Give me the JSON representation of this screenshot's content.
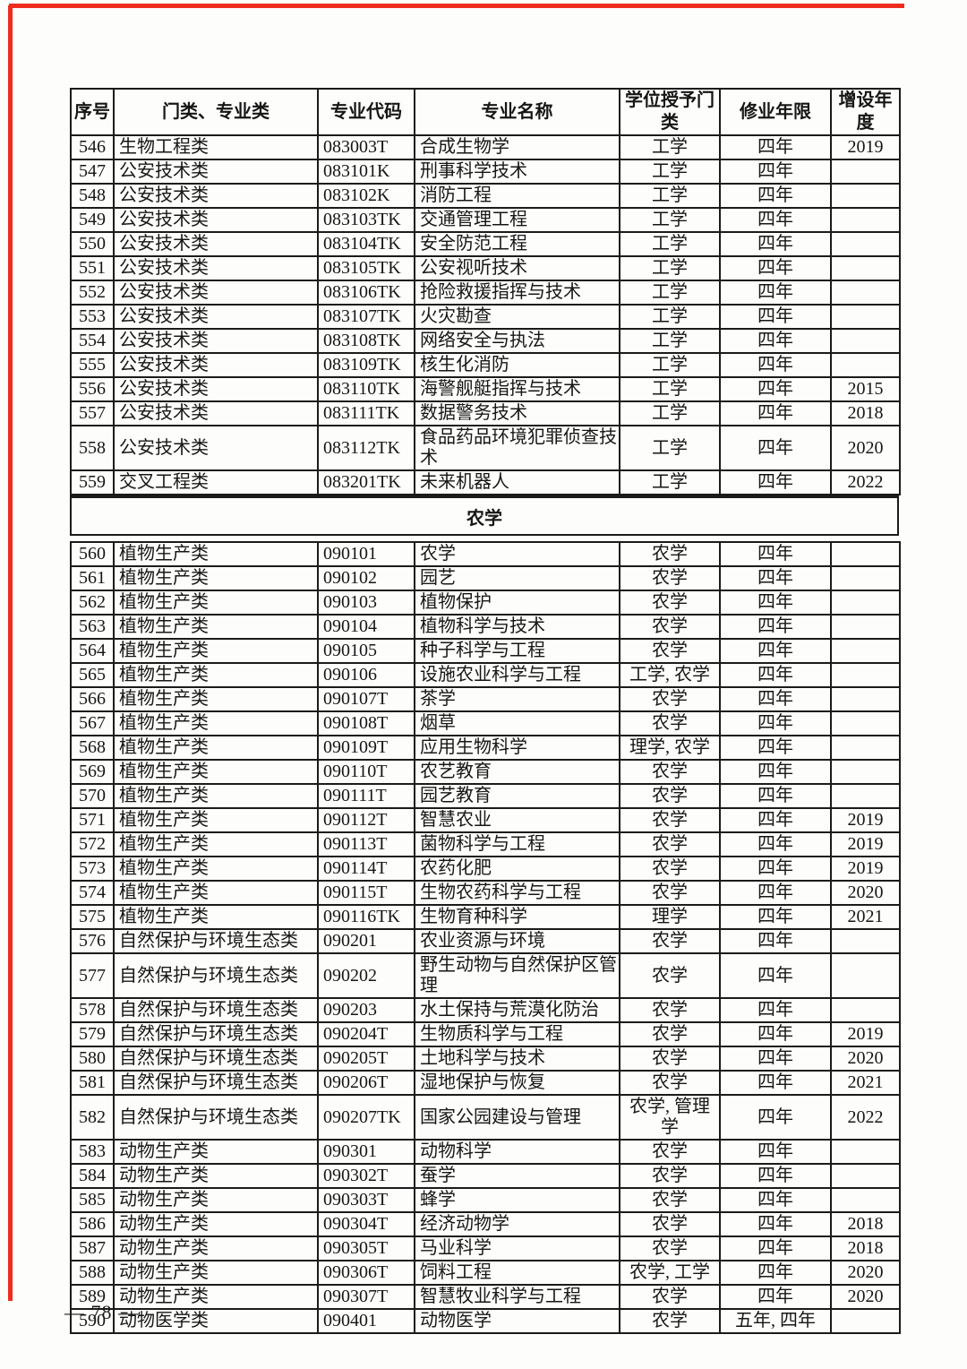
{
  "colors": {
    "annotation_red": "#ee2d1f"
  },
  "page": {
    "number_label": "— 78 —"
  },
  "table": {
    "headers": [
      "序号",
      "门类、专业类",
      "专业代码",
      "专业名称",
      "学位授予门类",
      "修业年限",
      "增设年度"
    ],
    "sections": [
      {
        "title": "",
        "rows": [
          {
            "no": "546",
            "category": "生物工程类",
            "code": "083003T",
            "name": "合成生物学",
            "degree": "工学",
            "years": "四年",
            "added": "2019"
          },
          {
            "no": "547",
            "category": "公安技术类",
            "code": "083101K",
            "name": "刑事科学技术",
            "degree": "工学",
            "years": "四年",
            "added": ""
          },
          {
            "no": "548",
            "category": "公安技术类",
            "code": "083102K",
            "name": "消防工程",
            "degree": "工学",
            "years": "四年",
            "added": ""
          },
          {
            "no": "549",
            "category": "公安技术类",
            "code": "083103TK",
            "name": "交通管理工程",
            "degree": "工学",
            "years": "四年",
            "added": ""
          },
          {
            "no": "550",
            "category": "公安技术类",
            "code": "083104TK",
            "name": "安全防范工程",
            "degree": "工学",
            "years": "四年",
            "added": ""
          },
          {
            "no": "551",
            "category": "公安技术类",
            "code": "083105TK",
            "name": "公安视听技术",
            "degree": "工学",
            "years": "四年",
            "added": ""
          },
          {
            "no": "552",
            "category": "公安技术类",
            "code": "083106TK",
            "name": "抢险救援指挥与技术",
            "degree": "工学",
            "years": "四年",
            "added": ""
          },
          {
            "no": "553",
            "category": "公安技术类",
            "code": "083107TK",
            "name": "火灾勘查",
            "degree": "工学",
            "years": "四年",
            "added": ""
          },
          {
            "no": "554",
            "category": "公安技术类",
            "code": "083108TK",
            "name": "网络安全与执法",
            "degree": "工学",
            "years": "四年",
            "added": ""
          },
          {
            "no": "555",
            "category": "公安技术类",
            "code": "083109TK",
            "name": "核生化消防",
            "degree": "工学",
            "years": "四年",
            "added": ""
          },
          {
            "no": "556",
            "category": "公安技术类",
            "code": "083110TK",
            "name": "海警舰艇指挥与技术",
            "degree": "工学",
            "years": "四年",
            "added": "2015"
          },
          {
            "no": "557",
            "category": "公安技术类",
            "code": "083111TK",
            "name": "数据警务技术",
            "degree": "工学",
            "years": "四年",
            "added": "2018"
          },
          {
            "no": "558",
            "category": "公安技术类",
            "code": "083112TK",
            "name": "食品药品环境犯罪侦查技术",
            "degree": "工学",
            "years": "四年",
            "added": "2020"
          },
          {
            "no": "559",
            "category": "交叉工程类",
            "code": "083201TK",
            "name": "未来机器人",
            "degree": "工学",
            "years": "四年",
            "added": "2022"
          }
        ]
      },
      {
        "title": "农学",
        "rows": [
          {
            "no": "560",
            "category": "植物生产类",
            "code": "090101",
            "name": "农学",
            "degree": "农学",
            "years": "四年",
            "added": ""
          },
          {
            "no": "561",
            "category": "植物生产类",
            "code": "090102",
            "name": "园艺",
            "degree": "农学",
            "years": "四年",
            "added": ""
          },
          {
            "no": "562",
            "category": "植物生产类",
            "code": "090103",
            "name": "植物保护",
            "degree": "农学",
            "years": "四年",
            "added": ""
          },
          {
            "no": "563",
            "category": "植物生产类",
            "code": "090104",
            "name": "植物科学与技术",
            "degree": "农学",
            "years": "四年",
            "added": ""
          },
          {
            "no": "564",
            "category": "植物生产类",
            "code": "090105",
            "name": "种子科学与工程",
            "degree": "农学",
            "years": "四年",
            "added": ""
          },
          {
            "no": "565",
            "category": "植物生产类",
            "code": "090106",
            "name": "设施农业科学与工程",
            "degree": "工学, 农学",
            "years": "四年",
            "added": ""
          },
          {
            "no": "566",
            "category": "植物生产类",
            "code": "090107T",
            "name": "茶学",
            "degree": "农学",
            "years": "四年",
            "added": ""
          },
          {
            "no": "567",
            "category": "植物生产类",
            "code": "090108T",
            "name": "烟草",
            "degree": "农学",
            "years": "四年",
            "added": ""
          },
          {
            "no": "568",
            "category": "植物生产类",
            "code": "090109T",
            "name": "应用生物科学",
            "degree": "理学, 农学",
            "years": "四年",
            "added": ""
          },
          {
            "no": "569",
            "category": "植物生产类",
            "code": "090110T",
            "name": "农艺教育",
            "degree": "农学",
            "years": "四年",
            "added": ""
          },
          {
            "no": "570",
            "category": "植物生产类",
            "code": "090111T",
            "name": "园艺教育",
            "degree": "农学",
            "years": "四年",
            "added": ""
          },
          {
            "no": "571",
            "category": "植物生产类",
            "code": "090112T",
            "name": "智慧农业",
            "degree": "农学",
            "years": "四年",
            "added": "2019"
          },
          {
            "no": "572",
            "category": "植物生产类",
            "code": "090113T",
            "name": "菌物科学与工程",
            "degree": "农学",
            "years": "四年",
            "added": "2019"
          },
          {
            "no": "573",
            "category": "植物生产类",
            "code": "090114T",
            "name": "农药化肥",
            "degree": "农学",
            "years": "四年",
            "added": "2019"
          },
          {
            "no": "574",
            "category": "植物生产类",
            "code": "090115T",
            "name": "生物农药科学与工程",
            "degree": "农学",
            "years": "四年",
            "added": "2020"
          },
          {
            "no": "575",
            "category": "植物生产类",
            "code": "090116TK",
            "name": "生物育种科学",
            "degree": "理学",
            "years": "四年",
            "added": "2021"
          },
          {
            "no": "576",
            "category": "自然保护与环境生态类",
            "code": "090201",
            "name": "农业资源与环境",
            "degree": "农学",
            "years": "四年",
            "added": ""
          },
          {
            "no": "577",
            "category": "自然保护与环境生态类",
            "code": "090202",
            "name": "野生动物与自然保护区管理",
            "degree": "农学",
            "years": "四年",
            "added": ""
          },
          {
            "no": "578",
            "category": "自然保护与环境生态类",
            "code": "090203",
            "name": "水土保持与荒漠化防治",
            "degree": "农学",
            "years": "四年",
            "added": ""
          },
          {
            "no": "579",
            "category": "自然保护与环境生态类",
            "code": "090204T",
            "name": "生物质科学与工程",
            "degree": "农学",
            "years": "四年",
            "added": "2019"
          },
          {
            "no": "580",
            "category": "自然保护与环境生态类",
            "code": "090205T",
            "name": "土地科学与技术",
            "degree": "农学",
            "years": "四年",
            "added": "2020"
          },
          {
            "no": "581",
            "category": "自然保护与环境生态类",
            "code": "090206T",
            "name": "湿地保护与恢复",
            "degree": "农学",
            "years": "四年",
            "added": "2021"
          },
          {
            "no": "582",
            "category": "自然保护与环境生态类",
            "code": "090207TK",
            "name": "国家公园建设与管理",
            "degree": "农学, 管理学",
            "years": "四年",
            "added": "2022"
          },
          {
            "no": "583",
            "category": "动物生产类",
            "code": "090301",
            "name": "动物科学",
            "degree": "农学",
            "years": "四年",
            "added": ""
          },
          {
            "no": "584",
            "category": "动物生产类",
            "code": "090302T",
            "name": "蚕学",
            "degree": "农学",
            "years": "四年",
            "added": ""
          },
          {
            "no": "585",
            "category": "动物生产类",
            "code": "090303T",
            "name": "蜂学",
            "degree": "农学",
            "years": "四年",
            "added": ""
          },
          {
            "no": "586",
            "category": "动物生产类",
            "code": "090304T",
            "name": "经济动物学",
            "degree": "农学",
            "years": "四年",
            "added": "2018"
          },
          {
            "no": "587",
            "category": "动物生产类",
            "code": "090305T",
            "name": "马业科学",
            "degree": "农学",
            "years": "四年",
            "added": "2018"
          },
          {
            "no": "588",
            "category": "动物生产类",
            "code": "090306T",
            "name": "饲料工程",
            "degree": "农学, 工学",
            "years": "四年",
            "added": "2020"
          },
          {
            "no": "589",
            "category": "动物生产类",
            "code": "090307T",
            "name": "智慧牧业科学与工程",
            "degree": "农学",
            "years": "四年",
            "added": "2020"
          },
          {
            "no": "590",
            "category": "动物医学类",
            "code": "090401",
            "name": "动物医学",
            "degree": "农学",
            "years": "五年, 四年",
            "added": ""
          }
        ]
      }
    ]
  }
}
